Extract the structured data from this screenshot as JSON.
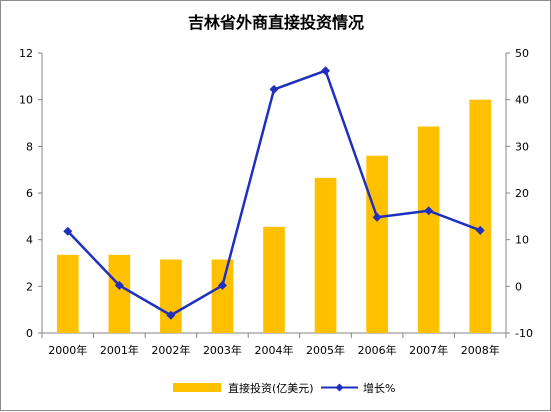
{
  "chart_data": {
    "type": "bar",
    "title": "吉林省外商直接投资情况",
    "categories": [
      "2000年",
      "2001年",
      "2002年",
      "2003年",
      "2004年",
      "2005年",
      "2006年",
      "2007年",
      "2008年"
    ],
    "series": [
      {
        "name": "直接投资(亿美元)",
        "type": "bar",
        "axis": "left",
        "color": "#FFC000",
        "values": [
          3.35,
          3.35,
          3.15,
          3.15,
          4.55,
          6.65,
          7.6,
          8.85,
          10.0
        ]
      },
      {
        "name": "增长%",
        "type": "line",
        "marker": "diamond",
        "axis": "right",
        "color": "#1F2FBF",
        "values": [
          11.8,
          0.2,
          -6.2,
          0.2,
          42.2,
          46.2,
          14.8,
          16.2,
          12.0
        ]
      }
    ],
    "left_axis": {
      "ylim": [
        0,
        12
      ],
      "ticks": [
        "0",
        "2",
        "4",
        "6",
        "8",
        "10",
        "12"
      ]
    },
    "right_axis": {
      "ylim": [
        -10,
        50
      ],
      "ticks": [
        "-10",
        "0",
        "10",
        "20",
        "30",
        "40",
        "50"
      ]
    },
    "grid": false,
    "legend_position": "bottom"
  }
}
